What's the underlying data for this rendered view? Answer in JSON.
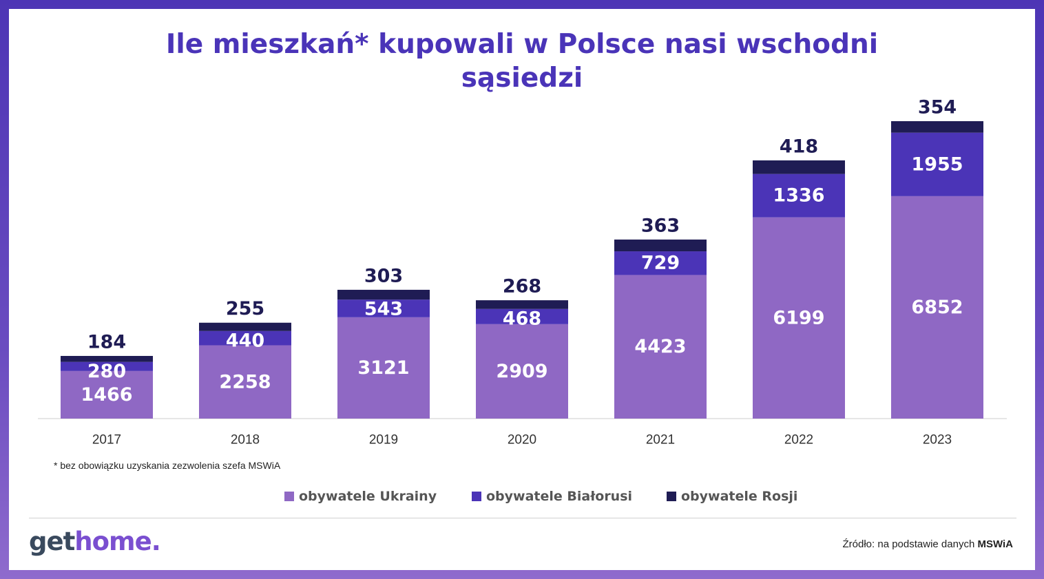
{
  "title": "Ile mieszkań* kupowali w Polsce nasi wschodni sąsiedzi",
  "footnote": "* bez obowiązku uzyskania zezwolenia szefa MSWiA",
  "source": {
    "prefix": "Źródło: na podstawie danych",
    "name": "MSWiA"
  },
  "logo": {
    "part1": "get",
    "part2": "home."
  },
  "colors": {
    "ukraine": "#8f68c4",
    "belarus": "#4b34b7",
    "russia": "#1f1c54",
    "title": "#4a34b8"
  },
  "chart_data": {
    "type": "bar",
    "stacked": true,
    "title": "Ile mieszkań* kupowali w Polsce nasi wschodni sąsiedzi",
    "categories": [
      "2017",
      "2018",
      "2019",
      "2020",
      "2021",
      "2022",
      "2023"
    ],
    "series": [
      {
        "name": "obywatele Ukrainy",
        "values": [
          1466,
          2258,
          3121,
          2909,
          4423,
          6199,
          6852
        ]
      },
      {
        "name": "obywatele Białorusi",
        "values": [
          280,
          440,
          543,
          468,
          729,
          1336,
          1955
        ]
      },
      {
        "name": "obywatele Rosji",
        "values": [
          184,
          255,
          303,
          268,
          363,
          418,
          354
        ]
      }
    ],
    "ylim": [
      0,
      9161
    ],
    "grid": false,
    "legend": "bottom-center",
    "data_labels": true
  }
}
